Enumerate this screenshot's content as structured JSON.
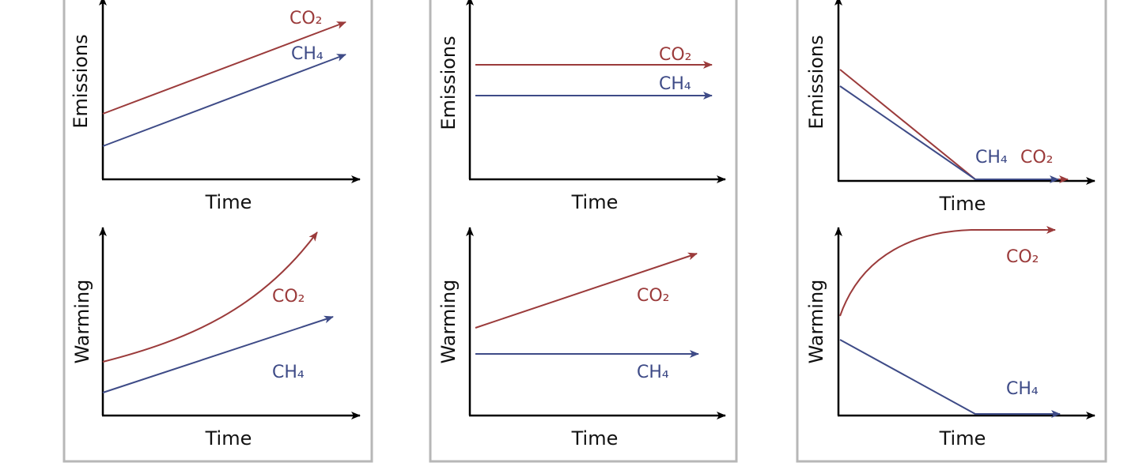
{
  "colors": {
    "co2": "#9b3b3b",
    "ch4": "#3e4b87",
    "axis": "#000000",
    "panel_border": "#b7b7b7"
  },
  "labels": {
    "time": "Time",
    "emissions": "Emissions",
    "warming": "Warming",
    "co2": "CO₂",
    "ch4": "CH₄"
  },
  "panels": [
    {
      "emissions_trend": "increasing",
      "warming_trend": "CO₂ accelerating, CH₄ increasing"
    },
    {
      "emissions_trend": "constant",
      "warming_trend": "CO₂ increasing, CH₄ constant"
    },
    {
      "emissions_trend": "declining to zero",
      "warming_trend": "CO₂ levels off, CH₄ declines to zero"
    }
  ]
}
